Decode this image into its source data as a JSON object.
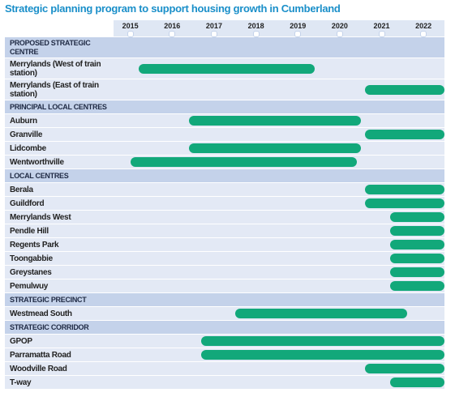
{
  "chart_data": {
    "type": "gantt",
    "title": "Strategic planning program to support housing growth in Cumberland",
    "xlim": [
      2014.6,
      2022.5
    ],
    "xticks": [
      2015,
      2016,
      2017,
      2018,
      2019,
      2020,
      2021,
      2022
    ],
    "color": "#12a87a",
    "groups": [
      {
        "name": "PROPOSED STRATEGIC CENTRE",
        "tasks": [
          {
            "label": "Merrylands (West of train station)",
            "start": 2015.2,
            "end": 2019.4
          },
          {
            "label": "Merrylands (East of train station)",
            "start": 2020.6,
            "end": 2022.5
          }
        ]
      },
      {
        "name": "PRINCIPAL LOCAL CENTRES",
        "tasks": [
          {
            "label": "Auburn",
            "start": 2016.4,
            "end": 2020.5
          },
          {
            "label": "Granville",
            "start": 2020.6,
            "end": 2022.5
          },
          {
            "label": "Lidcombe",
            "start": 2016.4,
            "end": 2020.5
          },
          {
            "label": "Wentworthville",
            "start": 2015.0,
            "end": 2020.4
          }
        ]
      },
      {
        "name": "LOCAL CENTRES",
        "tasks": [
          {
            "label": "Berala",
            "start": 2020.6,
            "end": 2022.5
          },
          {
            "label": "Guildford",
            "start": 2020.6,
            "end": 2022.5
          },
          {
            "label": "Merrylands West",
            "start": 2021.2,
            "end": 2022.5
          },
          {
            "label": "Pendle Hill",
            "start": 2021.2,
            "end": 2022.5
          },
          {
            "label": "Regents Park",
            "start": 2021.2,
            "end": 2022.5
          },
          {
            "label": "Toongabbie",
            "start": 2021.2,
            "end": 2022.5
          },
          {
            "label": "Greystanes",
            "start": 2021.2,
            "end": 2022.5
          },
          {
            "label": "Pemulwuy",
            "start": 2021.2,
            "end": 2022.5
          }
        ]
      },
      {
        "name": "STRATEGIC PRECINCT",
        "tasks": [
          {
            "label": "Westmead South",
            "start": 2017.5,
            "end": 2021.6
          }
        ]
      },
      {
        "name": "STRATEGIC CORRIDOR",
        "tasks": [
          {
            "label": "GPOP",
            "start": 2016.7,
            "end": 2022.5
          },
          {
            "label": "Parramatta Road",
            "start": 2016.7,
            "end": 2022.5
          },
          {
            "label": "Woodville Road",
            "start": 2020.6,
            "end": 2022.5
          },
          {
            "label": "T-way",
            "start": 2021.2,
            "end": 2022.5
          }
        ]
      }
    ]
  }
}
